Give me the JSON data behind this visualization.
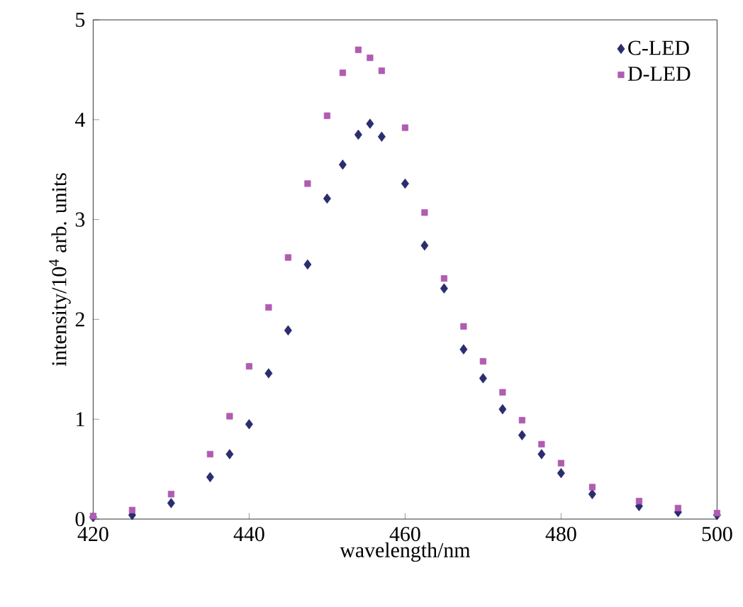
{
  "chart_data": {
    "type": "scatter",
    "xlabel": "wavelength/nm",
    "ylabel": "intensity/10$^{4}$ arb. units",
    "xlim": [
      420,
      500
    ],
    "xticks": [
      420,
      440,
      460,
      480,
      500
    ],
    "ylim": [
      0,
      5
    ],
    "yticks": [
      0,
      1,
      2,
      3,
      4,
      5
    ],
    "grid": false,
    "legend": "top right",
    "series": [
      {
        "name": "C-LED",
        "color": "#2b2d6e",
        "marker": "diamond",
        "x": [
          420,
          425,
          430,
          435,
          437.5,
          440,
          442.5,
          445,
          447.5,
          450,
          452,
          454,
          455.5,
          457,
          460,
          462.5,
          465,
          467.5,
          470,
          472.5,
          475,
          477.5,
          480,
          484,
          490,
          495,
          500
        ],
        "values": [
          0.02,
          0.04,
          0.16,
          0.42,
          0.65,
          0.95,
          1.46,
          1.89,
          2.55,
          3.21,
          3.55,
          3.85,
          3.96,
          3.83,
          3.36,
          2.74,
          2.31,
          1.7,
          1.41,
          1.1,
          0.84,
          0.65,
          0.46,
          0.25,
          0.13,
          0.07,
          0.04
        ]
      },
      {
        "name": "D-LED",
        "color": "#b05cb0",
        "marker": "square",
        "x": [
          420,
          425,
          430,
          435,
          437.5,
          440,
          442.5,
          445,
          447.5,
          450,
          452,
          454,
          455.5,
          457,
          460,
          462.5,
          465,
          467.5,
          470,
          472.5,
          475,
          477.5,
          480,
          484,
          490,
          495,
          500
        ],
        "values": [
          0.03,
          0.09,
          0.25,
          0.65,
          1.03,
          1.53,
          2.12,
          2.62,
          3.36,
          4.04,
          4.47,
          4.7,
          4.62,
          4.49,
          3.92,
          3.07,
          2.41,
          1.93,
          1.58,
          1.27,
          0.99,
          0.75,
          0.56,
          0.32,
          0.18,
          0.11,
          0.06
        ]
      }
    ]
  }
}
